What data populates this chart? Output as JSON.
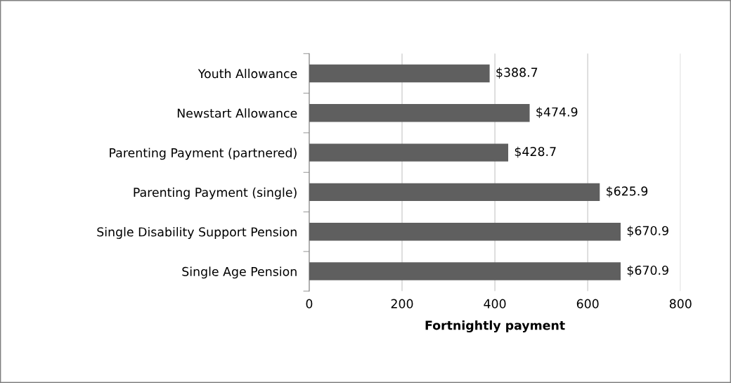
{
  "chart_data": {
    "type": "bar",
    "orientation": "horizontal",
    "xlabel": "Fortnightly payment",
    "categories": [
      "Youth Allowance",
      "Newstart Allowance",
      "Parenting Payment (partnered)",
      "Parenting Payment (single)",
      "Single Disability Support Pension",
      "Single Age Pension"
    ],
    "values": [
      388.7,
      474.9,
      428.7,
      625.9,
      670.9,
      670.9
    ],
    "value_labels": [
      "$388.7",
      "$474.9",
      "$428.7",
      "$625.9",
      "$670.9",
      "$670.9"
    ],
    "color": "#5f5f5f",
    "xlim": [
      0,
      800
    ],
    "xticks": [
      0,
      200,
      400,
      600,
      800
    ],
    "grid": "x",
    "legend": false
  }
}
